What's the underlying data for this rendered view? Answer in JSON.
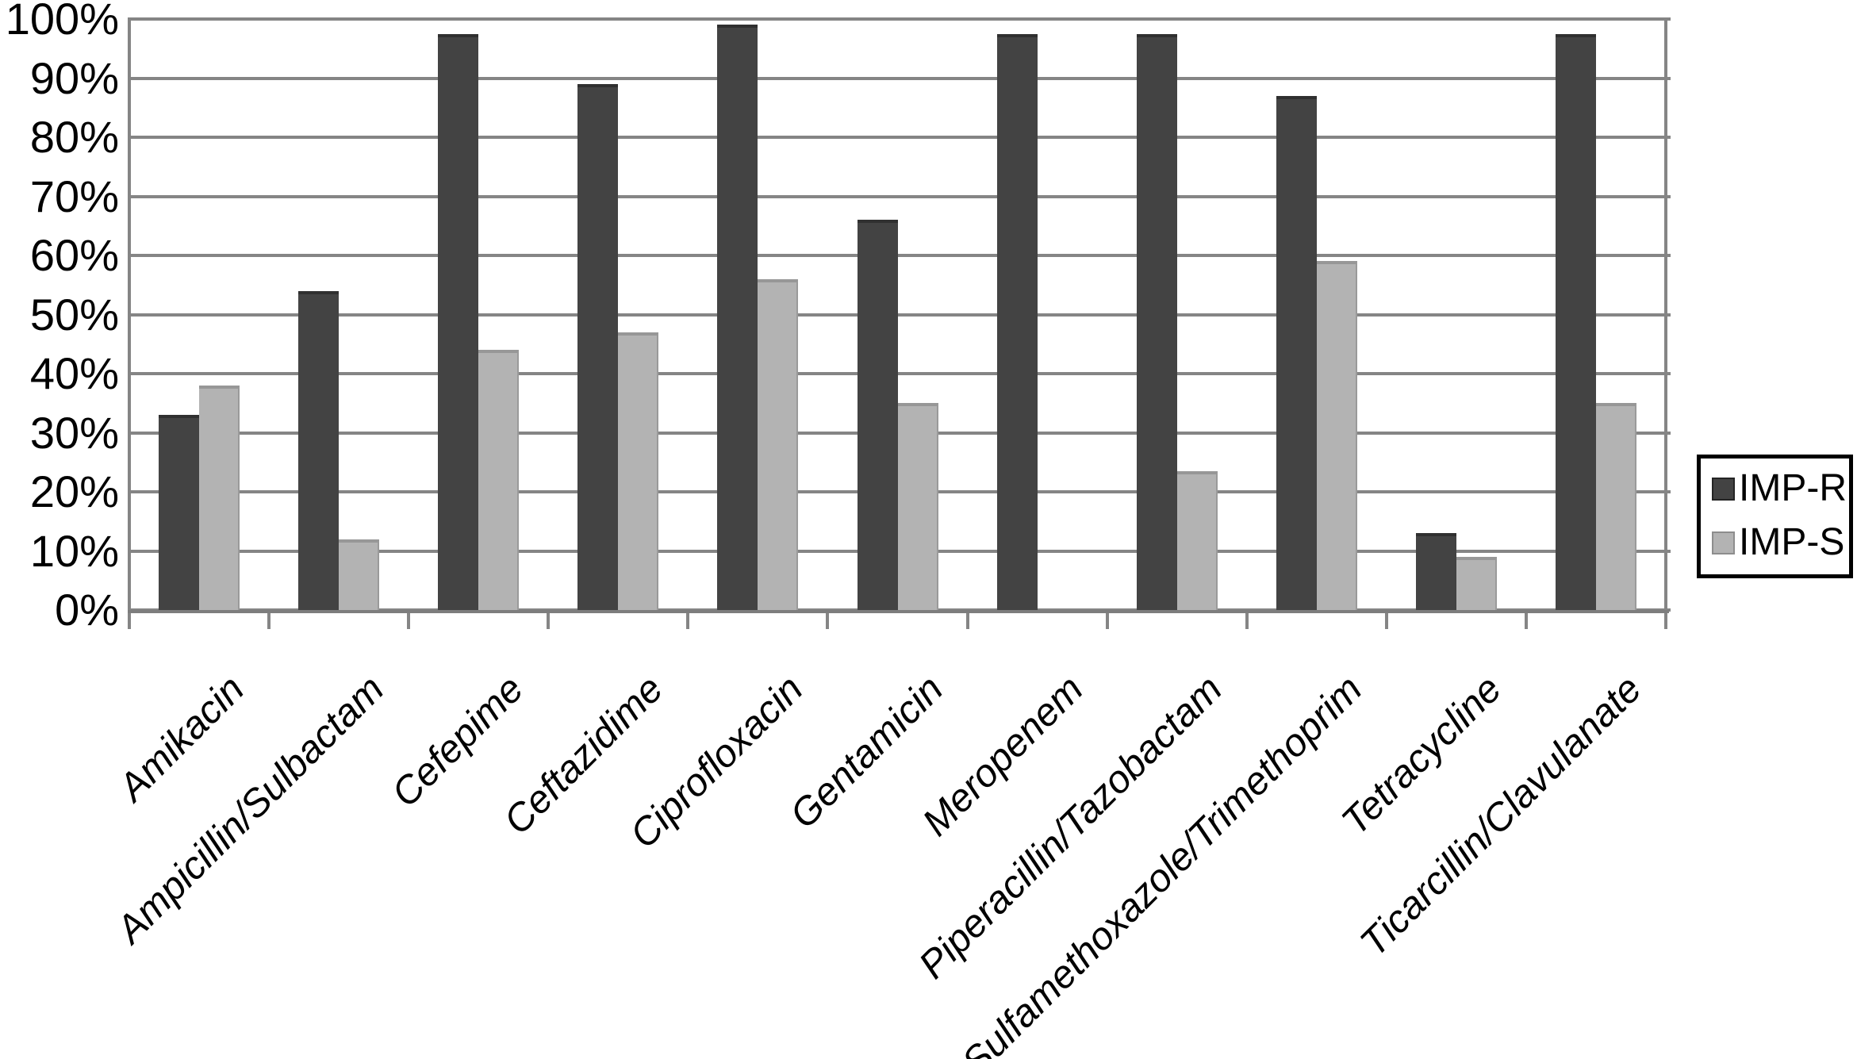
{
  "chart_data": {
    "type": "bar",
    "title": "",
    "categories": [
      "Amikacin",
      "Ampicillin/Sulbactam",
      "Cefepime",
      "Ceftazidime",
      "Ciprofloxacin",
      "Gentamicin",
      "Meropenem",
      "Piperacillin/Tazobactam",
      "Sulfamethoxazole/Trimethoprim",
      "Tetracycline",
      "Ticarcillin/Clavulanate"
    ],
    "series": [
      {
        "name": "IMP-R",
        "color": "#434343",
        "values": [
          33,
          54,
          97.5,
          89,
          99,
          66,
          97.5,
          97.5,
          87,
          13,
          97.5
        ]
      },
      {
        "name": "IMP-S",
        "color": "#b3b3b3",
        "values": [
          38,
          12,
          44,
          47,
          56,
          35,
          0,
          23.5,
          59,
          9,
          35
        ]
      }
    ],
    "y_ticks_percent": [
      100,
      90,
      80,
      70,
      60,
      50,
      40,
      30,
      20,
      10,
      0
    ],
    "y_tick_suffix": "%",
    "ylim": [
      0,
      100
    ],
    "grid": true,
    "legend_position": "right",
    "legend": {
      "items": [
        {
          "label": "IMP-R",
          "color": "#434343"
        },
        {
          "label": "IMP-S",
          "color": "#b3b3b3"
        }
      ]
    }
  }
}
